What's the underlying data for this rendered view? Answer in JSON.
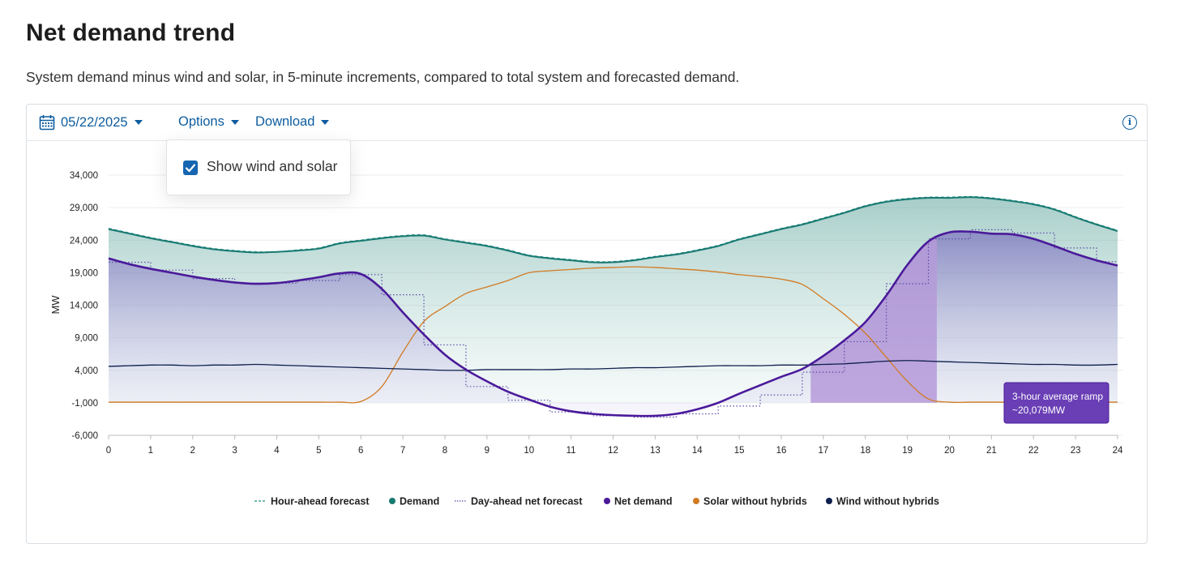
{
  "page": {
    "title": "Net demand trend",
    "subtitle": "System demand minus wind and solar, in 5-minute increments, compared to total system and forecasted demand."
  },
  "toolbar": {
    "date": "05/22/2025",
    "options_label": "Options",
    "download_label": "Download",
    "info_icon": "info-icon"
  },
  "options_menu": {
    "show_wind_solar_label": "Show wind and solar",
    "show_wind_solar_checked": true
  },
  "colors": {
    "demand": "#177a72",
    "net_demand": "#4a1a9a",
    "solar": "#d27a22",
    "wind": "#0e1f4d",
    "hour_ahead": "#1f8a83",
    "day_ahead": "#5b4aa8",
    "ramp": "#b59ad8",
    "tooltip": "#6a3fb5",
    "accent": "#0d5c9f"
  },
  "tooltip": {
    "line1": "3-hour average ramp",
    "line2": "~20,079MW"
  },
  "chart_data": {
    "type": "line",
    "title": "",
    "xlabel": "",
    "ylabel": "MW",
    "xlim": [
      0,
      24
    ],
    "ylim": [
      -6000,
      34000
    ],
    "x_ticks": [
      "0",
      "1",
      "2",
      "3",
      "4",
      "5",
      "6",
      "7",
      "8",
      "9",
      "10",
      "11",
      "12",
      "13",
      "14",
      "15",
      "16",
      "17",
      "18",
      "19",
      "20",
      "21",
      "22",
      "23",
      "24"
    ],
    "y_ticks": [
      "34,000",
      "29,000",
      "24,000",
      "19,000",
      "14,000",
      "9,000",
      "4,000",
      "-1,000",
      "-6,000"
    ],
    "y_tick_values": [
      34000,
      29000,
      24000,
      19000,
      14000,
      9000,
      4000,
      -1000,
      -6000
    ],
    "grid": true,
    "legend_position": "bottom",
    "x": [
      0,
      0.5,
      1,
      1.5,
      2,
      2.5,
      3,
      3.5,
      4,
      4.5,
      5,
      5.5,
      6,
      6.5,
      7,
      7.5,
      8,
      8.5,
      9,
      9.5,
      10,
      10.5,
      11,
      11.5,
      12,
      12.5,
      13,
      13.5,
      14,
      14.5,
      15,
      15.5,
      16,
      16.5,
      17,
      17.5,
      18,
      18.5,
      19,
      19.5,
      20,
      20.5,
      21,
      21.5,
      22,
      22.5,
      23,
      23.5,
      24
    ],
    "series": [
      {
        "name": "Hour-ahead forecast",
        "style": "dashed",
        "values": [
          25800,
          25100,
          24400,
          23800,
          23200,
          22700,
          22400,
          22200,
          22200,
          22500,
          22800,
          23600,
          24000,
          24400,
          24700,
          24800,
          24200,
          23700,
          23200,
          22500,
          21700,
          21300,
          21000,
          20700,
          20700,
          21000,
          21500,
          21900,
          22500,
          23200,
          24200,
          25000,
          25800,
          26500,
          27400,
          28300,
          29300,
          30000,
          30400,
          30600,
          30600,
          30700,
          30500,
          30100,
          29600,
          28800,
          27600,
          26500,
          25500
        ]
      },
      {
        "name": "Demand",
        "style": "solid",
        "values": [
          25700,
          25000,
          24300,
          23700,
          23100,
          22600,
          22300,
          22100,
          22200,
          22400,
          22700,
          23500,
          23900,
          24300,
          24600,
          24700,
          24100,
          23600,
          23100,
          22400,
          21600,
          21200,
          20900,
          20600,
          20600,
          20900,
          21400,
          21800,
          22400,
          23100,
          24100,
          24900,
          25700,
          26400,
          27300,
          28200,
          29200,
          29900,
          30300,
          30500,
          30500,
          30600,
          30400,
          30000,
          29500,
          28700,
          27500,
          26400,
          25400
        ]
      },
      {
        "name": "Day-ahead net forecast",
        "style": "dotted",
        "values": [
          20600,
          20600,
          19400,
          19400,
          18100,
          18100,
          17400,
          17400,
          17400,
          17800,
          17800,
          18700,
          18700,
          15600,
          15600,
          7900,
          7900,
          1500,
          1500,
          -600,
          -600,
          -2400,
          -2400,
          -3000,
          -3000,
          -3200,
          -3200,
          -2700,
          -2700,
          -1500,
          -1500,
          200,
          200,
          3700,
          3700,
          8400,
          8400,
          17300,
          17300,
          24200,
          24200,
          25600,
          25600,
          25100,
          25100,
          22800,
          22800,
          20700,
          20700
        ]
      },
      {
        "name": "Net demand",
        "style": "solid",
        "values": [
          21200,
          20300,
          19600,
          19000,
          18400,
          17900,
          17500,
          17300,
          17400,
          17800,
          18300,
          18900,
          18800,
          16500,
          12900,
          9500,
          6400,
          4100,
          2300,
          700,
          -500,
          -1600,
          -2300,
          -2700,
          -2900,
          -3000,
          -3000,
          -2700,
          -2000,
          -1000,
          400,
          1700,
          3000,
          4200,
          6200,
          8600,
          11400,
          15500,
          20200,
          23800,
          25200,
          25300,
          25000,
          24900,
          24200,
          23100,
          21900,
          20900,
          20100
        ]
      },
      {
        "name": "Solar without hybrids",
        "style": "solid",
        "values": [
          -900,
          -900,
          -900,
          -900,
          -900,
          -900,
          -900,
          -900,
          -900,
          -900,
          -900,
          -900,
          -800,
          1500,
          6800,
          11500,
          13800,
          15800,
          16800,
          17800,
          19000,
          19300,
          19500,
          19700,
          19800,
          19900,
          19800,
          19600,
          19400,
          19100,
          18700,
          18400,
          18000,
          17200,
          15000,
          12600,
          9700,
          6000,
          2300,
          -400,
          -900,
          -900,
          -900,
          -900,
          -900,
          -900,
          -900,
          -900,
          -900
        ]
      },
      {
        "name": "Wind without hybrids",
        "style": "solid",
        "values": [
          4600,
          4700,
          4800,
          4800,
          4700,
          4800,
          4800,
          4900,
          4800,
          4700,
          4600,
          4500,
          4400,
          4300,
          4200,
          4100,
          4000,
          4000,
          4100,
          4100,
          4100,
          4100,
          4200,
          4200,
          4300,
          4400,
          4400,
          4500,
          4600,
          4700,
          4700,
          4700,
          4800,
          4800,
          4900,
          5000,
          5200,
          5400,
          5500,
          5400,
          5300,
          5200,
          5100,
          5000,
          4900,
          4900,
          4800,
          4800,
          4900
        ]
      }
    ],
    "annotations": {
      "ramp_region": [
        16.7,
        19.7
      ],
      "tooltip": [
        "3-hour average ramp",
        "~20,079MW"
      ]
    }
  }
}
